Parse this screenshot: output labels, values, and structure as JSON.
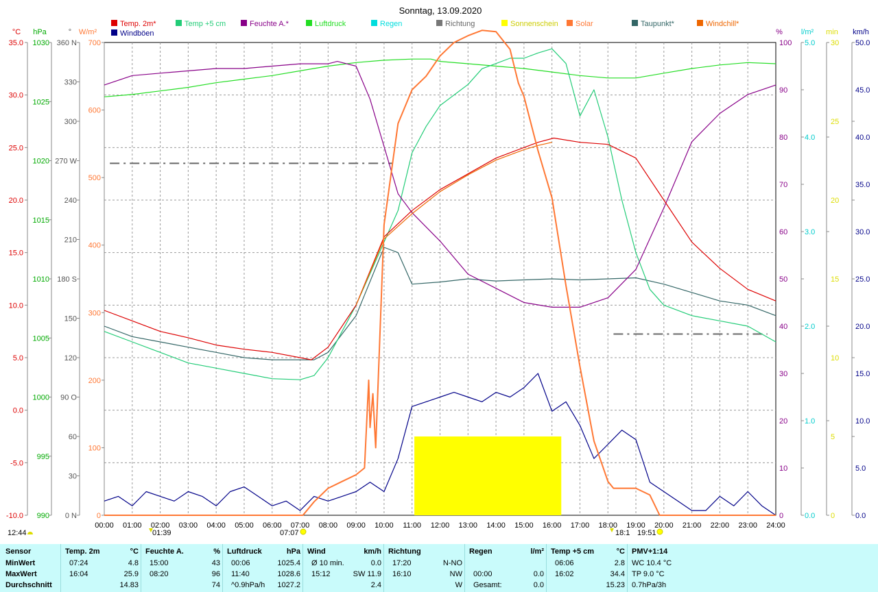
{
  "title": "Sonntag, 13.09.2020",
  "legend": [
    {
      "label": "Temp. 2m*",
      "color": "#dd0000"
    },
    {
      "label": "Temp +5 cm",
      "color": "#22cc77"
    },
    {
      "label": "Feuchte A.*",
      "color": "#880088"
    },
    {
      "label": "Luftdruck",
      "color": "#22dd22"
    },
    {
      "label": "Regen",
      "color": "#00dddd"
    },
    {
      "label": "Richtung",
      "color": "#777777"
    },
    {
      "label": "Sonnenschein",
      "color": "#ffff00"
    },
    {
      "label": "Solar",
      "color": "#ff7733"
    },
    {
      "label": "Taupunkt*",
      "color": "#336666"
    },
    {
      "label": "Windchill*",
      "color": "#ee6600"
    },
    {
      "label": "Windböen",
      "color": "#000088"
    }
  ],
  "axes": {
    "temp": {
      "unit": "°C",
      "color": "#dd0000",
      "ticks": [
        "35.0",
        "30.0",
        "25.0",
        "20.0",
        "15.0",
        "10.0",
        "5.0",
        "0.0",
        "-5.0",
        "-10.0"
      ]
    },
    "pressure": {
      "unit": "hPa",
      "color": "#00aa00",
      "ticks": [
        "1030",
        "1025",
        "1020",
        "1015",
        "1010",
        "1005",
        "1000",
        "995",
        "990"
      ]
    },
    "direction": {
      "unit": "°",
      "color": "#555555",
      "ticks": [
        "360 N",
        "330",
        "300",
        "270 W",
        "240",
        "210",
        "180 S",
        "150",
        "120",
        "90 O",
        "60",
        "30",
        "0 N"
      ]
    },
    "solar": {
      "unit": "W/m²",
      "color": "#ff7733",
      "ticks": [
        "700",
        "600",
        "500",
        "400",
        "300",
        "200",
        "100",
        "0"
      ]
    },
    "humidity": {
      "unit": "%",
      "color": "#880088",
      "ticks": [
        "100",
        "90",
        "80",
        "70",
        "60",
        "50",
        "40",
        "30",
        "20",
        "10",
        "0"
      ]
    },
    "rain": {
      "unit": "l/m²",
      "color": "#00cccc",
      "ticks": [
        "5.0",
        "4.0",
        "3.0",
        "2.0",
        "1.0",
        "0.0"
      ]
    },
    "sunmin": {
      "unit": "min",
      "color": "#dddd00",
      "ticks": [
        "30",
        "25",
        "20",
        "15",
        "10",
        "5",
        "0"
      ]
    },
    "wind": {
      "unit": "km/h",
      "color": "#000088",
      "ticks": [
        "50.0",
        "45.0",
        "40.0",
        "35.0",
        "30.0",
        "25.0",
        "20.0",
        "15.0",
        "10.0",
        "5.0",
        "0.0"
      ]
    }
  },
  "x_ticks": [
    "00:00",
    "01:00",
    "02:00",
    "03:00",
    "04:00",
    "05:00",
    "06:00",
    "07:00",
    "08:00",
    "09:00",
    "10:00",
    "11:00",
    "12:00",
    "13:00",
    "14:00",
    "15:00",
    "16:00",
    "17:00",
    "18:00",
    "19:00",
    "20:00",
    "21:00",
    "22:00",
    "23:00",
    "24:00"
  ],
  "markers": {
    "left": "12:44",
    "moonrise": "01:39",
    "sunrise": "07:07",
    "moonset": "18:1",
    "sunset": "19:51"
  },
  "chart_data": {
    "type": "line",
    "x_unit": "hour",
    "series": [
      {
        "name": "Temp. 2m*",
        "axis": "temp",
        "color": "#dd0000",
        "x": [
          0,
          1,
          2,
          3,
          4,
          5,
          6,
          7,
          7.4,
          8,
          9,
          10,
          11,
          12,
          13,
          14,
          15,
          15.5,
          16.07,
          17,
          18,
          19,
          20,
          21,
          22,
          23,
          24
        ],
        "y": [
          9.5,
          8.5,
          7.5,
          6.9,
          6.2,
          5.8,
          5.5,
          5.0,
          4.8,
          6.0,
          10.0,
          16.5,
          19.0,
          21.0,
          22.5,
          24.0,
          25.0,
          25.5,
          25.9,
          25.5,
          25.3,
          24.0,
          20.0,
          16.0,
          13.5,
          11.5,
          10.4
        ]
      },
      {
        "name": "Windchill*",
        "axis": "temp",
        "color": "#ee6600",
        "x": [
          9,
          10,
          11,
          12,
          13,
          14,
          15,
          15.5,
          16
        ],
        "y": [
          10.0,
          16.3,
          18.7,
          20.8,
          22.4,
          23.8,
          24.8,
          25.2,
          25.5
        ]
      },
      {
        "name": "Taupunkt*",
        "axis": "temp",
        "color": "#336666",
        "x": [
          0,
          1,
          2,
          3,
          4,
          5,
          6,
          7,
          7.5,
          8,
          9,
          10,
          10.5,
          11,
          12,
          13,
          14,
          15,
          16,
          17,
          18,
          19,
          20,
          21,
          22,
          23,
          24
        ],
        "y": [
          8.0,
          7.0,
          6.5,
          6.0,
          5.5,
          5.0,
          4.8,
          4.8,
          4.8,
          5.5,
          9.0,
          15.5,
          15.0,
          12.0,
          12.2,
          12.5,
          12.3,
          12.4,
          12.5,
          12.4,
          12.5,
          12.6,
          12.0,
          11.2,
          10.4,
          10.0,
          9.0
        ]
      },
      {
        "name": "Temp +5 cm",
        "axis": "temp",
        "color": "#22cc77",
        "x": [
          0,
          1,
          2,
          3,
          4,
          5,
          6,
          7,
          7.5,
          8,
          9,
          10,
          10.5,
          11,
          11.5,
          12,
          13,
          13.5,
          14,
          14.5,
          15,
          15.5,
          16,
          16.5,
          17,
          17.5,
          18,
          18.5,
          19,
          19.5,
          20,
          21,
          22,
          23,
          24
        ],
        "y": [
          7.5,
          6.5,
          5.5,
          4.5,
          4.0,
          3.5,
          3.0,
          2.9,
          3.3,
          5.0,
          10.0,
          16.0,
          19.0,
          24.5,
          27.0,
          29.0,
          31.0,
          32.5,
          33.0,
          33.5,
          33.5,
          34.0,
          34.4,
          33.0,
          28.0,
          30.5,
          26.0,
          20.0,
          15.0,
          11.5,
          10.0,
          9.0,
          8.5,
          8.0,
          6.5
        ]
      },
      {
        "name": "Feuchte A.*",
        "axis": "humidity",
        "color": "#880088",
        "x": [
          0,
          1,
          2,
          3,
          4,
          5,
          6,
          7,
          8,
          8.33,
          9,
          9.5,
          10,
          10.5,
          11,
          12,
          13,
          14,
          15,
          16,
          17,
          18,
          19,
          20,
          21,
          22,
          23,
          24
        ],
        "y": [
          91,
          93,
          93.5,
          94,
          94.5,
          94.5,
          95,
          95.5,
          95.5,
          96,
          95,
          88,
          78,
          68,
          64,
          58,
          51,
          48,
          45,
          44,
          44,
          46,
          52,
          65,
          79,
          85,
          89,
          91
        ]
      },
      {
        "name": "Luftdruck",
        "axis": "pressure",
        "color": "#22dd22",
        "x": [
          0,
          1,
          2,
          3,
          4,
          5,
          6,
          7,
          8,
          9,
          10,
          11,
          11.67,
          12,
          13,
          14,
          15,
          16,
          17,
          18,
          19,
          20,
          21,
          22,
          23,
          24
        ],
        "y": [
          1025.4,
          1025.6,
          1025.9,
          1026.2,
          1026.6,
          1026.9,
          1027.2,
          1027.6,
          1028.0,
          1028.3,
          1028.5,
          1028.6,
          1028.6,
          1028.4,
          1028.2,
          1028.0,
          1027.8,
          1027.5,
          1027.2,
          1027.0,
          1027.0,
          1027.4,
          1027.8,
          1028.1,
          1028.3,
          1028.2
        ]
      },
      {
        "name": "Solar",
        "axis": "solar",
        "color": "#ff7733",
        "x": [
          0,
          7.1,
          7.5,
          8,
          8.5,
          9,
          9.3,
          9.45,
          9.5,
          9.6,
          9.7,
          10,
          10.5,
          11,
          11.5,
          12,
          12.5,
          13,
          13.5,
          14,
          14.5,
          14.8,
          15,
          15.5,
          16,
          16.5,
          17,
          17.5,
          18,
          18.2,
          18.5,
          19,
          19.5,
          19.85,
          20,
          24
        ],
        "y": [
          0,
          0,
          20,
          40,
          50,
          60,
          70,
          200,
          130,
          180,
          100,
          430,
          580,
          630,
          650,
          680,
          700,
          710,
          718,
          716,
          690,
          640,
          620,
          540,
          470,
          340,
          220,
          110,
          50,
          40,
          40,
          40,
          30,
          0,
          0,
          0
        ]
      },
      {
        "name": "Windböen",
        "axis": "wind",
        "color": "#000088",
        "x": [
          0,
          0.5,
          1,
          1.5,
          2,
          2.5,
          3,
          3.5,
          4,
          4.5,
          5,
          5.5,
          6,
          6.5,
          7,
          7.5,
          8,
          8.5,
          9,
          9.5,
          10,
          10.5,
          11,
          11.5,
          12,
          12.5,
          13,
          13.5,
          14,
          14.5,
          15,
          15.5,
          16,
          16.5,
          17,
          17.5,
          18,
          18.5,
          19,
          19.5,
          20,
          20.5,
          21,
          21.5,
          22,
          22.5,
          23,
          23.5,
          24
        ],
        "y": [
          1.5,
          2.0,
          1.0,
          2.5,
          2.0,
          1.5,
          2.5,
          2.0,
          1.0,
          2.5,
          3.0,
          2.0,
          1.0,
          1.5,
          0.5,
          2.0,
          1.5,
          2.0,
          2.5,
          3.5,
          2.5,
          6.0,
          11.5,
          12.0,
          12.5,
          13.0,
          12.5,
          12.0,
          13.0,
          12.5,
          13.5,
          15.0,
          11.0,
          12.0,
          9.5,
          6.0,
          7.5,
          9.0,
          8.0,
          3.5,
          2.5,
          1.5,
          0.5,
          0.5,
          2.0,
          1.0,
          2.5,
          1.0,
          0.0
        ]
      }
    ],
    "sunshine": {
      "from": "11:05",
      "to": "16:20",
      "minutes": 5
    },
    "direction_level_deg": [
      268,
      138
    ]
  },
  "stats": {
    "columns": [
      {
        "header": "Sensor",
        "unit": "",
        "rows": [
          "MinWert",
          "MaxWert",
          "Durchschnitt"
        ]
      },
      {
        "header": "Temp. 2m",
        "unit": "°C",
        "times": [
          "07:24",
          "16:04",
          ""
        ],
        "values": [
          "4.8",
          "25.9",
          "14.83"
        ]
      },
      {
        "header": "Feuchte A.",
        "unit": "%",
        "times": [
          "15:00",
          "08:20",
          ""
        ],
        "values": [
          "43",
          "96",
          "74"
        ]
      },
      {
        "header": "Luftdruck",
        "unit": "hPa",
        "times": [
          "00:06",
          "11:40",
          "^0.9hPa/h"
        ],
        "values": [
          "1025.4",
          "1028.6",
          "1027.2"
        ]
      },
      {
        "header": "Wind",
        "unit": "km/h",
        "times": [
          "Ø 10 min.",
          "15:12",
          ""
        ],
        "values": [
          "0.0",
          "SW 11.9",
          "2.4"
        ]
      },
      {
        "header": "Richtung",
        "unit": "",
        "times": [
          "17:20",
          "16:10",
          ""
        ],
        "values": [
          "N-NO",
          "NW",
          "W"
        ]
      },
      {
        "header": "Regen",
        "unit": "l/m²",
        "times": [
          "",
          "00:00",
          "Gesamt:"
        ],
        "values": [
          "",
          "0.0",
          "0.0"
        ]
      },
      {
        "header": "Temp +5 cm",
        "unit": "°C",
        "times": [
          "06:06",
          "16:02",
          ""
        ],
        "values": [
          "2.8",
          "34.4",
          "15.23"
        ]
      },
      {
        "header": "PMV+1:14",
        "unit": "",
        "times": [
          "WC 10.4 °C",
          "TP 9.0 °C",
          "0.7hPa/3h"
        ],
        "values": [
          "",
          "",
          ""
        ]
      }
    ]
  }
}
